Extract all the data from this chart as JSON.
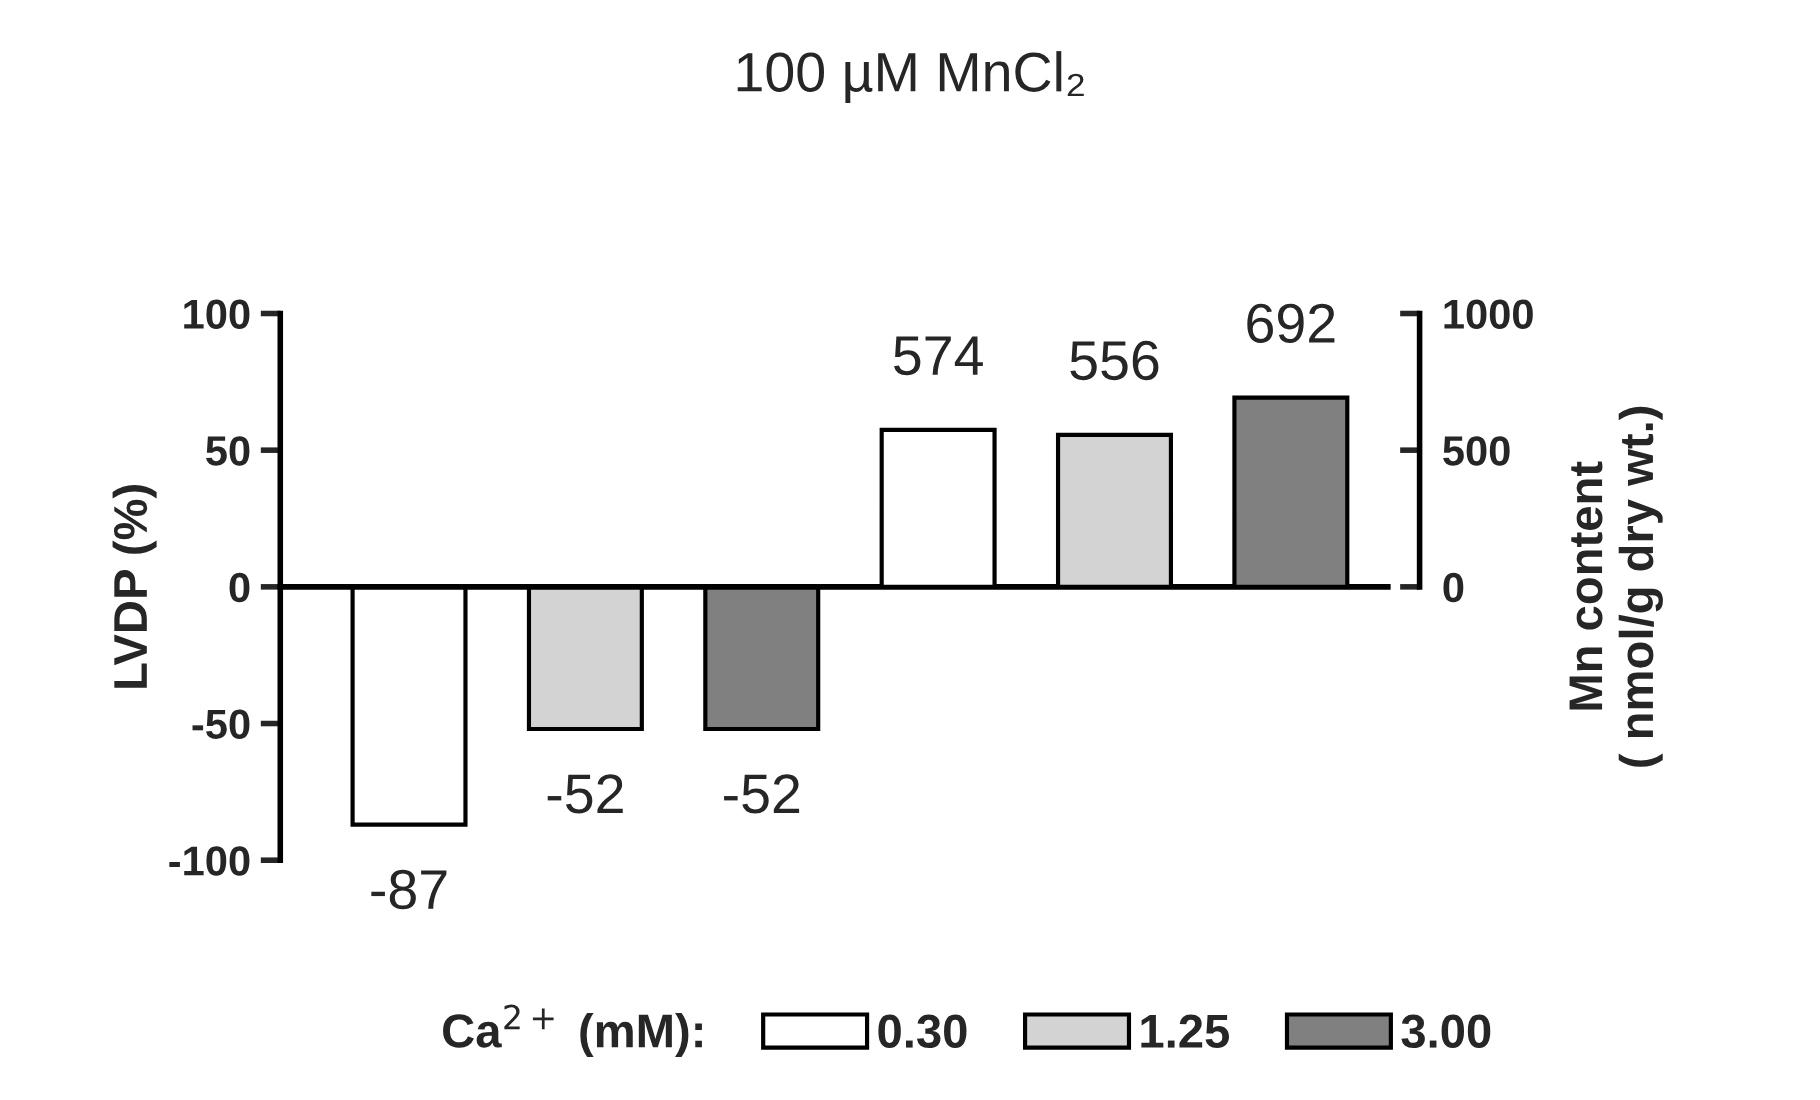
{
  "chart_data": {
    "type": "bar",
    "title": "100 µM MnCl₂",
    "ylabel": "LVDP (%)",
    "y2label": "Mn content\n( nmol/g dry wt.)",
    "legend_title": "Ca$^{2+}$ (mM):",
    "categories": [
      null,
      null,
      null,
      null,
      null,
      null
    ],
    "series": [
      {
        "name": "0.30",
        "color": "#ffffff",
        "values": [
          -87,
          null,
          null,
          null,
          null,
          null
        ]
      },
      {
        "name": "1.25",
        "color": "#d3d3d3",
        "values": [
          null,
          -52,
          null,
          null,
          null,
          null
        ]
      },
      {
        "name": "3.00",
        "color": "#808080",
        "values": [
          null,
          null,
          -52,
          null,
          null,
          null
        ]
      },
      {
        "color": "#ffffff",
        "axis": "y2",
        "values": [
          null,
          null,
          null,
          574,
          null,
          null
        ]
      },
      {
        "color": "#d3d3d3",
        "axis": "y2",
        "values": [
          null,
          null,
          null,
          null,
          556,
          null
        ]
      },
      {
        "color": "#808080",
        "axis": "y2",
        "values": [
          null,
          null,
          null,
          null,
          null,
          692
        ]
      }
    ],
    "ylim": [
      -100,
      100
    ],
    "yticks": [
      -100,
      -50,
      0,
      50,
      100
    ],
    "y2lim": [
      -1000,
      1000
    ],
    "y2ticks": [
      0,
      500,
      1000
    ],
    "data_labels": true,
    "legend": "bottom"
  }
}
